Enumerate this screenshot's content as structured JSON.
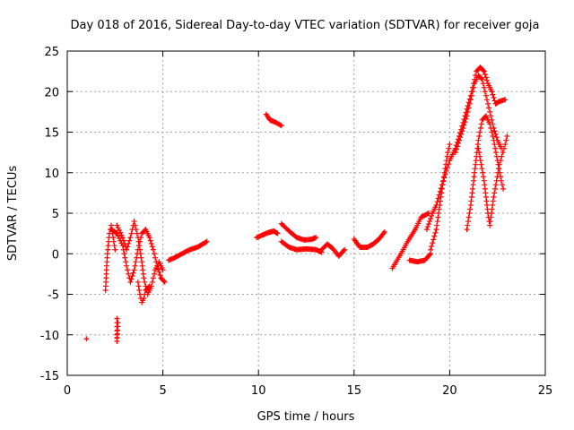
{
  "chart_data": {
    "type": "scatter",
    "title": "Day 018 of 2016, Sidereal Day-to-day VTEC variation (SDTVAR) for receiver goja",
    "xlabel": "GPS time / hours",
    "ylabel": "SDTVAR / TECUs",
    "xlim": [
      0,
      25
    ],
    "ylim": [
      -15,
      25
    ],
    "xticks": [
      0,
      5,
      10,
      15,
      20,
      25
    ],
    "yticks": [
      -15,
      -10,
      -5,
      0,
      5,
      10,
      15,
      20,
      25
    ],
    "grid": true,
    "marker": "+",
    "color": "#ff0000",
    "tracks": [
      {
        "name": "isolated",
        "points": [
          [
            1.0,
            -10.5
          ]
        ]
      },
      {
        "name": "spike-a",
        "points": [
          [
            2.0,
            -4.5
          ],
          [
            2.05,
            -2
          ],
          [
            2.1,
            0
          ],
          [
            2.2,
            2.5
          ],
          [
            2.3,
            3.5
          ],
          [
            2.4,
            2
          ],
          [
            2.5,
            0.5
          ]
        ]
      },
      {
        "name": "spike-b",
        "points": [
          [
            2.6,
            -8
          ],
          [
            2.6,
            -10
          ],
          [
            2.6,
            -10.8
          ],
          [
            2.65,
            -8.5
          ]
        ]
      },
      {
        "name": "early-wave-a",
        "points": [
          [
            2.3,
            3.0
          ],
          [
            2.6,
            2.5
          ],
          [
            2.9,
            1.0
          ],
          [
            3.1,
            -1.5
          ],
          [
            3.3,
            -3.5
          ],
          [
            3.5,
            -2.0
          ],
          [
            3.7,
            0.5
          ],
          [
            3.9,
            2.5
          ],
          [
            4.1,
            3.0
          ],
          [
            4.3,
            2.0
          ],
          [
            4.5,
            0.5
          ],
          [
            4.7,
            -1.5
          ],
          [
            4.9,
            -3.0
          ],
          [
            5.1,
            -3.5
          ]
        ]
      },
      {
        "name": "early-wave-b",
        "points": [
          [
            2.6,
            3.5
          ],
          [
            2.9,
            2.0
          ],
          [
            3.1,
            0.5
          ],
          [
            3.3,
            2.0
          ],
          [
            3.5,
            4.0
          ],
          [
            3.7,
            2.0
          ],
          [
            3.9,
            -1.0
          ],
          [
            4.0,
            -3.0
          ],
          [
            4.2,
            -5.0
          ],
          [
            4.4,
            -4.0
          ],
          [
            4.6,
            -2.0
          ],
          [
            4.8,
            -1.0
          ],
          [
            5.0,
            -2.0
          ]
        ]
      },
      {
        "name": "early-dip",
        "points": [
          [
            3.7,
            -3.5
          ],
          [
            3.8,
            -5.0
          ],
          [
            3.9,
            -6.0
          ],
          [
            4.0,
            -5.5
          ],
          [
            4.1,
            -4.5
          ],
          [
            4.3,
            -4.0
          ]
        ]
      },
      {
        "name": "early-tail",
        "points": [
          [
            5.3,
            -0.8
          ],
          [
            5.6,
            -0.5
          ],
          [
            6.0,
            0.0
          ],
          [
            6.4,
            0.5
          ],
          [
            6.8,
            0.8
          ],
          [
            7.3,
            1.5
          ]
        ]
      },
      {
        "name": "mid-high",
        "points": [
          [
            10.4,
            17.2
          ],
          [
            10.6,
            16.5
          ],
          [
            10.9,
            16.2
          ],
          [
            11.2,
            15.8
          ]
        ]
      },
      {
        "name": "mid-a",
        "points": [
          [
            9.9,
            2.0
          ],
          [
            10.2,
            2.3
          ],
          [
            10.5,
            2.6
          ],
          [
            10.8,
            2.8
          ],
          [
            11.0,
            2.5
          ]
        ]
      },
      {
        "name": "mid-b",
        "points": [
          [
            11.2,
            3.7
          ],
          [
            11.6,
            2.8
          ],
          [
            12.0,
            2.0
          ],
          [
            12.4,
            1.7
          ],
          [
            12.8,
            1.8
          ],
          [
            13.0,
            2.0
          ]
        ]
      },
      {
        "name": "mid-c",
        "points": [
          [
            11.2,
            1.5
          ],
          [
            11.6,
            0.8
          ],
          [
            12.0,
            0.5
          ],
          [
            12.5,
            0.6
          ],
          [
            13.0,
            0.5
          ],
          [
            13.3,
            0.2
          ]
        ]
      },
      {
        "name": "mid-d",
        "points": [
          [
            13.3,
            0.5
          ],
          [
            13.6,
            1.2
          ],
          [
            13.9,
            0.6
          ],
          [
            14.2,
            -0.3
          ],
          [
            14.5,
            0.5
          ]
        ]
      },
      {
        "name": "mid-e",
        "points": [
          [
            15.0,
            1.8
          ],
          [
            15.3,
            0.8
          ],
          [
            15.7,
            0.8
          ],
          [
            16.0,
            1.2
          ],
          [
            16.3,
            1.8
          ],
          [
            16.6,
            2.7
          ]
        ]
      },
      {
        "name": "late-a",
        "points": [
          [
            17.0,
            -1.8
          ],
          [
            17.4,
            -0.2
          ],
          [
            17.8,
            1.5
          ],
          [
            18.2,
            3.0
          ],
          [
            18.5,
            4.5
          ],
          [
            18.9,
            5.0
          ]
        ]
      },
      {
        "name": "late-b",
        "points": [
          [
            17.9,
            -0.8
          ],
          [
            18.3,
            -1.0
          ],
          [
            18.7,
            -0.8
          ],
          [
            19.0,
            0.0
          ]
        ]
      },
      {
        "name": "late-c",
        "points": [
          [
            19.0,
            0.5
          ],
          [
            19.3,
            3.0
          ],
          [
            19.6,
            8.0
          ],
          [
            19.9,
            12.5
          ],
          [
            20.0,
            13.5
          ]
        ]
      },
      {
        "name": "late-d",
        "points": [
          [
            18.8,
            3.0
          ],
          [
            19.1,
            5.0
          ],
          [
            19.3,
            6.0
          ],
          [
            19.6,
            8.5
          ],
          [
            20.0,
            11.5
          ],
          [
            20.3,
            13.0
          ],
          [
            20.5,
            14.5
          ],
          [
            20.8,
            17.0
          ],
          [
            21.1,
            19.5
          ],
          [
            21.4,
            22.5
          ],
          [
            21.6,
            23.0
          ],
          [
            21.8,
            22.5
          ],
          [
            22.0,
            21.0
          ],
          [
            22.2,
            20.0
          ],
          [
            22.4,
            18.5
          ],
          [
            22.6,
            18.8
          ],
          [
            22.9,
            19.0
          ]
        ]
      },
      {
        "name": "late-e",
        "points": [
          [
            20.3,
            12.5
          ],
          [
            20.5,
            14.0
          ],
          [
            20.7,
            15.5
          ],
          [
            20.9,
            17.0
          ],
          [
            21.1,
            19.0
          ],
          [
            21.3,
            21.0
          ],
          [
            21.5,
            22.0
          ],
          [
            21.7,
            21.5
          ],
          [
            21.9,
            19.5
          ],
          [
            22.1,
            17.5
          ],
          [
            22.3,
            15.5
          ],
          [
            22.5,
            14.0
          ],
          [
            22.7,
            13.0
          ]
        ]
      },
      {
        "name": "late-f",
        "points": [
          [
            20.9,
            3.0
          ],
          [
            21.1,
            6.0
          ],
          [
            21.3,
            10.0
          ],
          [
            21.5,
            14.0
          ],
          [
            21.7,
            16.5
          ],
          [
            21.9,
            17.0
          ],
          [
            22.1,
            16.0
          ],
          [
            22.3,
            14.0
          ],
          [
            22.5,
            11.5
          ],
          [
            22.7,
            9.0
          ],
          [
            22.8,
            8.0
          ]
        ]
      },
      {
        "name": "late-g",
        "points": [
          [
            21.5,
            13.0
          ],
          [
            21.8,
            9.0
          ],
          [
            22.0,
            5.0
          ],
          [
            22.1,
            3.5
          ],
          [
            22.3,
            7.0
          ],
          [
            22.6,
            11.0
          ],
          [
            22.9,
            13.5
          ],
          [
            23.0,
            14.5
          ]
        ]
      }
    ]
  }
}
